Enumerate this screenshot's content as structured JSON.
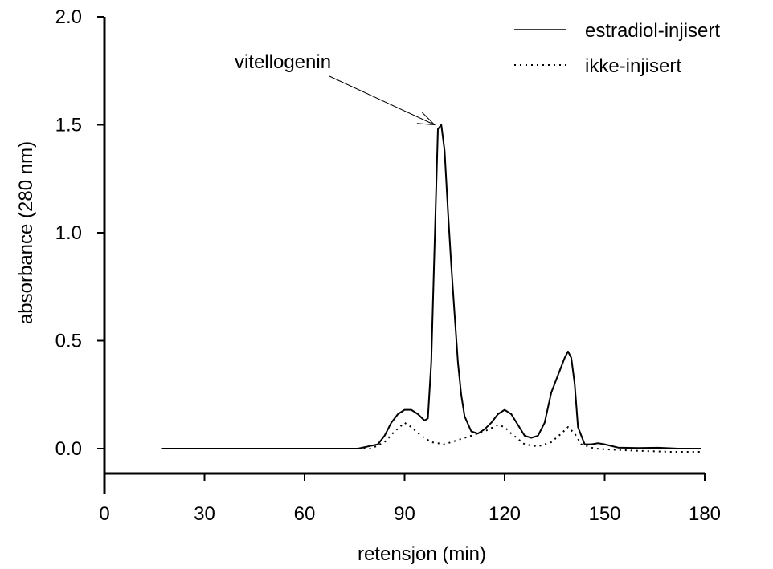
{
  "chart_data": {
    "type": "line",
    "title": "",
    "xlabel": "retensjon (min)",
    "ylabel": "absorbance (280 nm)",
    "xlim": [
      0,
      180
    ],
    "ylim": [
      -0.1,
      2.0
    ],
    "x_ticks": [
      0,
      30,
      60,
      90,
      120,
      150,
      180
    ],
    "x_tick_labels": [
      "0",
      "30",
      "60",
      "90",
      "120",
      "150",
      "180"
    ],
    "y_ticks": [
      0.0,
      0.5,
      1.0,
      1.5,
      2.0
    ],
    "y_tick_labels": [
      "0.0",
      "0.5",
      "1.0",
      "1.5",
      "2.0"
    ],
    "grid": false,
    "legend_position": "top-right",
    "annotations": [
      {
        "text": "vitellogenin",
        "points_to": {
          "x": 99,
          "y": 1.5
        }
      }
    ],
    "series": [
      {
        "name": "estradiol-injisert",
        "style": "solid",
        "color": "#000000",
        "points": [
          [
            17,
            0.0
          ],
          [
            40,
            0.0
          ],
          [
            60,
            0.0
          ],
          [
            76,
            0.0
          ],
          [
            79,
            0.01
          ],
          [
            82,
            0.02
          ],
          [
            84,
            0.06
          ],
          [
            86,
            0.12
          ],
          [
            88,
            0.16
          ],
          [
            90,
            0.18
          ],
          [
            92,
            0.18
          ],
          [
            94,
            0.16
          ],
          [
            96,
            0.13
          ],
          [
            97,
            0.14
          ],
          [
            98,
            0.4
          ],
          [
            99,
            0.95
          ],
          [
            100,
            1.48
          ],
          [
            101,
            1.5
          ],
          [
            102,
            1.38
          ],
          [
            103,
            1.1
          ],
          [
            104,
            0.85
          ],
          [
            105,
            0.62
          ],
          [
            106,
            0.4
          ],
          [
            107,
            0.25
          ],
          [
            108,
            0.15
          ],
          [
            110,
            0.08
          ],
          [
            112,
            0.07
          ],
          [
            114,
            0.09
          ],
          [
            116,
            0.12
          ],
          [
            118,
            0.16
          ],
          [
            120,
            0.18
          ],
          [
            122,
            0.16
          ],
          [
            124,
            0.11
          ],
          [
            126,
            0.06
          ],
          [
            128,
            0.05
          ],
          [
            130,
            0.06
          ],
          [
            132,
            0.12
          ],
          [
            134,
            0.26
          ],
          [
            136,
            0.34
          ],
          [
            138,
            0.42
          ],
          [
            139,
            0.45
          ],
          [
            140,
            0.42
          ],
          [
            141,
            0.3
          ],
          [
            142,
            0.1
          ],
          [
            144,
            0.02
          ],
          [
            146,
            0.02
          ],
          [
            148,
            0.025
          ],
          [
            150,
            0.02
          ],
          [
            154,
            0.005
          ],
          [
            160,
            0.003
          ],
          [
            166,
            0.004
          ],
          [
            172,
            0.0
          ],
          [
            179,
            0.0
          ]
        ]
      },
      {
        "name": "ikke-injisert",
        "style": "dotted",
        "color": "#000000",
        "points": [
          [
            17,
            0.0
          ],
          [
            60,
            0.0
          ],
          [
            80,
            0.0
          ],
          [
            84,
            0.03
          ],
          [
            87,
            0.08
          ],
          [
            90,
            0.12
          ],
          [
            92,
            0.1
          ],
          [
            95,
            0.06
          ],
          [
            98,
            0.03
          ],
          [
            102,
            0.02
          ],
          [
            106,
            0.04
          ],
          [
            110,
            0.06
          ],
          [
            114,
            0.08
          ],
          [
            118,
            0.11
          ],
          [
            120,
            0.1
          ],
          [
            122,
            0.07
          ],
          [
            126,
            0.02
          ],
          [
            130,
            0.01
          ],
          [
            134,
            0.03
          ],
          [
            137,
            0.07
          ],
          [
            139,
            0.1
          ],
          [
            141,
            0.07
          ],
          [
            143,
            0.02
          ],
          [
            147,
            0.0
          ],
          [
            152,
            -0.005
          ],
          [
            160,
            -0.01
          ],
          [
            170,
            -0.015
          ],
          [
            179,
            -0.015
          ]
        ]
      }
    ]
  }
}
